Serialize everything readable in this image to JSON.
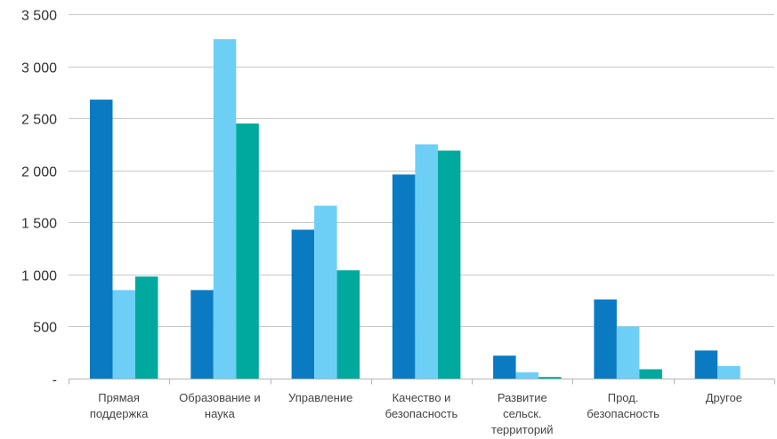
{
  "chart_data": {
    "type": "bar",
    "title": "",
    "xlabel": "",
    "ylabel": "",
    "ylim": [
      0,
      3500
    ],
    "grid": true,
    "legend": "none",
    "y_ticks": [
      {
        "value": 0,
        "label": "-"
      },
      {
        "value": 500,
        "label": "500"
      },
      {
        "value": 1000,
        "label": "1 000"
      },
      {
        "value": 1500,
        "label": "1 500"
      },
      {
        "value": 2000,
        "label": "2 000"
      },
      {
        "value": 2500,
        "label": "2 500"
      },
      {
        "value": 3000,
        "label": "3 000"
      },
      {
        "value": 3500,
        "label": "3 500"
      }
    ],
    "categories": [
      [
        "Прямая",
        "поддержка"
      ],
      [
        "Образование и",
        "наука"
      ],
      [
        "Управление"
      ],
      [
        "Качество и",
        "безопасность"
      ],
      [
        "Развитие",
        "сельск.",
        "территорий"
      ],
      [
        "Прод.",
        "безопасность"
      ],
      [
        "Другое"
      ]
    ],
    "series": [
      {
        "color": "#0a7bc2",
        "values": [
          2680,
          850,
          1430,
          1960,
          220,
          760,
          270
        ]
      },
      {
        "color": "#6dcff6",
        "values": [
          850,
          3260,
          1660,
          2250,
          60,
          500,
          120
        ]
      },
      {
        "color": "#00a99d",
        "values": [
          980,
          2450,
          1040,
          2190,
          15,
          90,
          0
        ]
      }
    ]
  }
}
